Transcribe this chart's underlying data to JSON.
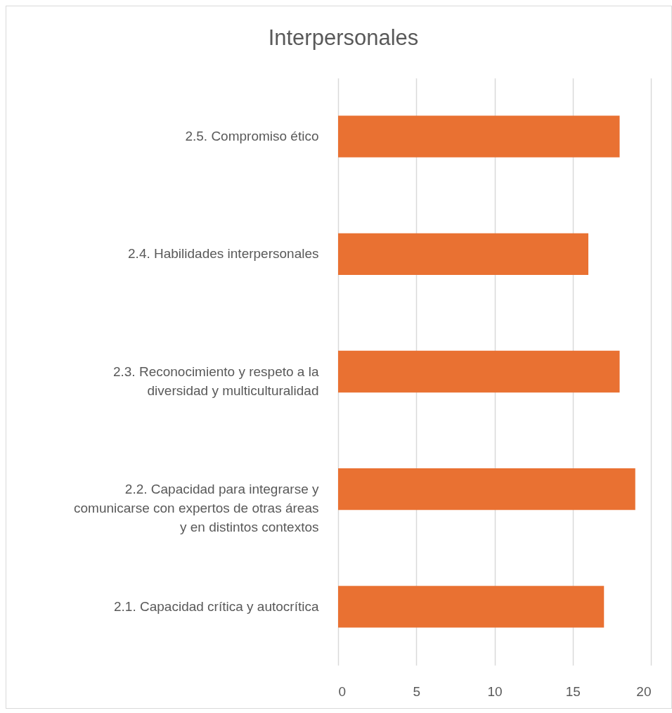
{
  "chart_data": {
    "type": "bar",
    "orientation": "horizontal",
    "title": "Interpersonales",
    "categories": [
      "2.5. Compromiso ético",
      "2.4. Habilidades interpersonales",
      "2.3. Reconocimiento y respeto a la diversidad y multiculturalidad",
      "2.2. Capacidad para integrarse y comunicarse con expertos de otras áreas y en distintos contextos",
      "2.1. Capacidad crítica y autocrítica"
    ],
    "values": [
      18,
      16,
      18,
      19,
      17
    ],
    "color": "#e97132",
    "xlim": [
      0,
      20
    ],
    "xticks": [
      0,
      5,
      10,
      15,
      20
    ],
    "grid": "x"
  }
}
